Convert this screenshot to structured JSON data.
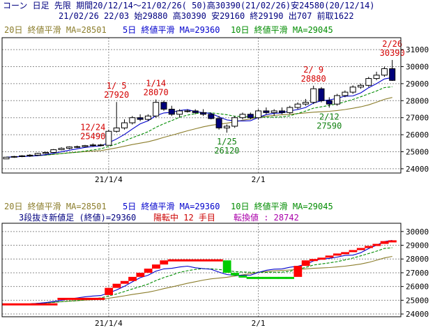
{
  "header": {
    "line1": "コーン 日足 先限 期間20/12/14～21/02/26( 50)高30390(21/02/26)安24580(20/12/14)",
    "line2": "21/02/26 22/03 始29880 高30390 安29160 終29190 出707 前取1622"
  },
  "colors": {
    "background": "#ffffff",
    "frame": "#000000",
    "grid": "#8c8c8c",
    "ma20": "#8b7d2b",
    "ma5": "#0000cc",
    "ma10": "#008c00",
    "label_red": "#d40000",
    "label_green": "#108010",
    "up_candle": "#ffffff",
    "down_candle": "#00007a",
    "brick_up": "#ff0000",
    "brick_down": "#00cc00",
    "info": "#000080",
    "info_red": "#cc0000",
    "info_purple": "#aa00aa"
  },
  "legend": {
    "ma20": "20日 終値平滑 MA=28501",
    "ma5": "5日 終値平滑 MA=29360",
    "ma10": "10日 終値平滑 MA=29045"
  },
  "lower_info": {
    "part1": "3段抜き新値足 (終値)=29360",
    "part2": "陽転中  12 手目",
    "part3": "転換値 : 28742"
  },
  "chart_data": [
    {
      "type": "candlestick",
      "panel": "upper",
      "y_ticks": [
        24000,
        25000,
        26000,
        27000,
        28000,
        29000,
        30000,
        31000
      ],
      "ylim": [
        23750,
        31700
      ],
      "x_labels": [
        {
          "label": "21/1/4",
          "index": 13
        },
        {
          "label": "2/1",
          "index": 32
        }
      ],
      "candles": [
        {
          "o": 24580,
          "h": 24680,
          "l": 24580,
          "c": 24680
        },
        {
          "o": 24680,
          "h": 24760,
          "l": 24640,
          "c": 24720
        },
        {
          "o": 24720,
          "h": 24800,
          "l": 24680,
          "c": 24760
        },
        {
          "o": 24760,
          "h": 24860,
          "l": 24700,
          "c": 24800
        },
        {
          "o": 24800,
          "h": 24940,
          "l": 24760,
          "c": 24900
        },
        {
          "o": 24900,
          "h": 25000,
          "l": 24860,
          "c": 24960
        },
        {
          "o": 24960,
          "h": 25160,
          "l": 24940,
          "c": 25120
        },
        {
          "o": 25120,
          "h": 25260,
          "l": 25080,
          "c": 25200
        },
        {
          "o": 25200,
          "h": 25320,
          "l": 25140,
          "c": 25280
        },
        {
          "o": 25280,
          "h": 25360,
          "l": 25220,
          "c": 25300
        },
        {
          "o": 25300,
          "h": 25400,
          "l": 25260,
          "c": 25360
        },
        {
          "o": 25360,
          "h": 25490,
          "l": 25300,
          "c": 25400
        },
        {
          "o": 25400,
          "h": 25460,
          "l": 25320,
          "c": 25380
        },
        {
          "o": 25380,
          "h": 26300,
          "l": 25360,
          "c": 26200
        },
        {
          "o": 26200,
          "h": 27920,
          "l": 26120,
          "c": 26400
        },
        {
          "o": 26400,
          "h": 26900,
          "l": 26300,
          "c": 26700
        },
        {
          "o": 26700,
          "h": 27100,
          "l": 26600,
          "c": 27000
        },
        {
          "o": 27000,
          "h": 27200,
          "l": 26800,
          "c": 26900
        },
        {
          "o": 26900,
          "h": 27200,
          "l": 26800,
          "c": 27100
        },
        {
          "o": 27100,
          "h": 28070,
          "l": 27000,
          "c": 27900
        },
        {
          "o": 27900,
          "h": 28000,
          "l": 27400,
          "c": 27500
        },
        {
          "o": 27500,
          "h": 27700,
          "l": 27100,
          "c": 27200
        },
        {
          "o": 27200,
          "h": 27500,
          "l": 27000,
          "c": 27400
        },
        {
          "o": 27400,
          "h": 27500,
          "l": 27300,
          "c": 27400
        },
        {
          "o": 27400,
          "h": 27500,
          "l": 27200,
          "c": 27300
        },
        {
          "o": 27300,
          "h": 27500,
          "l": 27100,
          "c": 27200
        },
        {
          "o": 27200,
          "h": 27300,
          "l": 26900,
          "c": 26950
        },
        {
          "o": 26950,
          "h": 27100,
          "l": 26300,
          "c": 26400
        },
        {
          "o": 26400,
          "h": 26600,
          "l": 26120,
          "c": 26500
        },
        {
          "o": 26500,
          "h": 27100,
          "l": 26400,
          "c": 27000
        },
        {
          "o": 27000,
          "h": 27300,
          "l": 26900,
          "c": 27200
        },
        {
          "o": 27200,
          "h": 27300,
          "l": 26900,
          "c": 27000
        },
        {
          "o": 27000,
          "h": 27500,
          "l": 26900,
          "c": 27400
        },
        {
          "o": 27400,
          "h": 27600,
          "l": 27200,
          "c": 27300
        },
        {
          "o": 27300,
          "h": 27500,
          "l": 27100,
          "c": 27400
        },
        {
          "o": 27400,
          "h": 27600,
          "l": 27200,
          "c": 27300
        },
        {
          "o": 27300,
          "h": 27700,
          "l": 27200,
          "c": 27600
        },
        {
          "o": 27600,
          "h": 27900,
          "l": 27500,
          "c": 27800
        },
        {
          "o": 27800,
          "h": 28100,
          "l": 27700,
          "c": 27900
        },
        {
          "o": 27900,
          "h": 28880,
          "l": 27800,
          "c": 28700
        },
        {
          "o": 28700,
          "h": 28800,
          "l": 27900,
          "c": 28000
        },
        {
          "o": 28000,
          "h": 28200,
          "l": 27590,
          "c": 27800
        },
        {
          "o": 27800,
          "h": 28400,
          "l": 27700,
          "c": 28300
        },
        {
          "o": 28300,
          "h": 28600,
          "l": 28200,
          "c": 28500
        },
        {
          "o": 28500,
          "h": 28900,
          "l": 28400,
          "c": 28800
        },
        {
          "o": 28800,
          "h": 29000,
          "l": 28700,
          "c": 28900
        },
        {
          "o": 28900,
          "h": 29400,
          "l": 28800,
          "c": 29300
        },
        {
          "o": 29300,
          "h": 29700,
          "l": 29200,
          "c": 29500
        },
        {
          "o": 29500,
          "h": 30000,
          "l": 29400,
          "c": 29880
        },
        {
          "o": 29880,
          "h": 30390,
          "l": 29160,
          "c": 29190
        }
      ],
      "annotations": [
        {
          "label": "12/24",
          "value": "25490",
          "index": 11,
          "price": 25490,
          "color": "red",
          "pos": "above"
        },
        {
          "label": "1/ 5",
          "value": "27920",
          "index": 14,
          "price": 27920,
          "color": "red",
          "pos": "above"
        },
        {
          "label": "1/14",
          "value": "28070",
          "index": 19,
          "price": 28070,
          "color": "red",
          "pos": "above"
        },
        {
          "label": "1/25",
          "value": "26120",
          "index": 28,
          "price": 26120,
          "color": "green",
          "pos": "below"
        },
        {
          "label": "2/ 9",
          "value": "28880",
          "index": 39,
          "price": 28880,
          "color": "red",
          "pos": "above"
        },
        {
          "label": "2/12",
          "value": "27590",
          "index": 41,
          "price": 27590,
          "color": "green",
          "pos": "below"
        },
        {
          "label": "2/26",
          "value": "30390",
          "index": 49,
          "price": 30390,
          "color": "red",
          "pos": "above"
        }
      ]
    },
    {
      "type": "three-line-break",
      "panel": "lower",
      "y_ticks": [
        24000,
        25000,
        26000,
        27000,
        28000,
        29000,
        30000
      ],
      "ylim": [
        23800,
        30600
      ],
      "x_labels": [
        {
          "label": "21/1/4",
          "index": 13
        },
        {
          "label": "2/1",
          "index": 32
        }
      ],
      "bricks": [
        {
          "i": 13,
          "low": 25380,
          "high": 25900,
          "dir": "up"
        },
        {
          "i": 14,
          "low": 25900,
          "high": 26200,
          "dir": "up"
        },
        {
          "i": 15,
          "low": 26200,
          "high": 26400,
          "dir": "up"
        },
        {
          "i": 16,
          "low": 26400,
          "high": 26700,
          "dir": "up"
        },
        {
          "i": 17,
          "low": 26700,
          "high": 27000,
          "dir": "up"
        },
        {
          "i": 18,
          "low": 27000,
          "high": 27300,
          "dir": "up"
        },
        {
          "i": 19,
          "low": 27300,
          "high": 27600,
          "dir": "up"
        },
        {
          "i": 20,
          "low": 27600,
          "high": 27900,
          "dir": "up"
        },
        {
          "i": 28,
          "low": 27000,
          "high": 27900,
          "dir": "down"
        },
        {
          "i": 29,
          "low": 26800,
          "high": 27000,
          "dir": "down"
        },
        {
          "i": 30,
          "low": 26700,
          "high": 26800,
          "dir": "down"
        },
        {
          "i": 31,
          "low": 26650,
          "high": 26700,
          "dir": "down"
        },
        {
          "i": 32,
          "low": 26650,
          "high": 26700,
          "dir": "down"
        },
        {
          "i": 33,
          "low": 26650,
          "high": 26700,
          "dir": "down"
        },
        {
          "i": 34,
          "low": 26650,
          "high": 26700,
          "dir": "down"
        },
        {
          "i": 35,
          "low": 26650,
          "high": 26700,
          "dir": "down"
        },
        {
          "i": 36,
          "low": 26650,
          "high": 26700,
          "dir": "down"
        },
        {
          "i": 37,
          "low": 26700,
          "high": 27500,
          "dir": "up"
        },
        {
          "i": 38,
          "low": 27500,
          "high": 27900,
          "dir": "up"
        },
        {
          "i": 39,
          "low": 27900,
          "high": 28000,
          "dir": "up"
        },
        {
          "i": 40,
          "low": 28000,
          "high": 28100,
          "dir": "up"
        },
        {
          "i": 41,
          "low": 28100,
          "high": 28250,
          "dir": "up"
        },
        {
          "i": 42,
          "low": 28250,
          "high": 28400,
          "dir": "up"
        },
        {
          "i": 43,
          "low": 28400,
          "high": 28500,
          "dir": "up"
        },
        {
          "i": 44,
          "low": 28500,
          "high": 28650,
          "dir": "up"
        },
        {
          "i": 45,
          "low": 28650,
          "high": 28800,
          "dir": "up"
        },
        {
          "i": 46,
          "low": 28800,
          "high": 28950,
          "dir": "up"
        },
        {
          "i": 47,
          "low": 28950,
          "high": 29100,
          "dir": "up"
        },
        {
          "i": 48,
          "low": 29100,
          "high": 29300,
          "dir": "up"
        },
        {
          "i": 49,
          "low": 29300,
          "high": 29360,
          "dir": "up"
        }
      ],
      "flat_lines": [
        {
          "from": 0,
          "to": 6,
          "price": 24700,
          "dir": "up"
        },
        {
          "from": 7,
          "to": 12,
          "price": 25100,
          "dir": "up"
        },
        {
          "from": 21,
          "to": 27,
          "price": 27900,
          "dir": "up"
        }
      ]
    }
  ]
}
